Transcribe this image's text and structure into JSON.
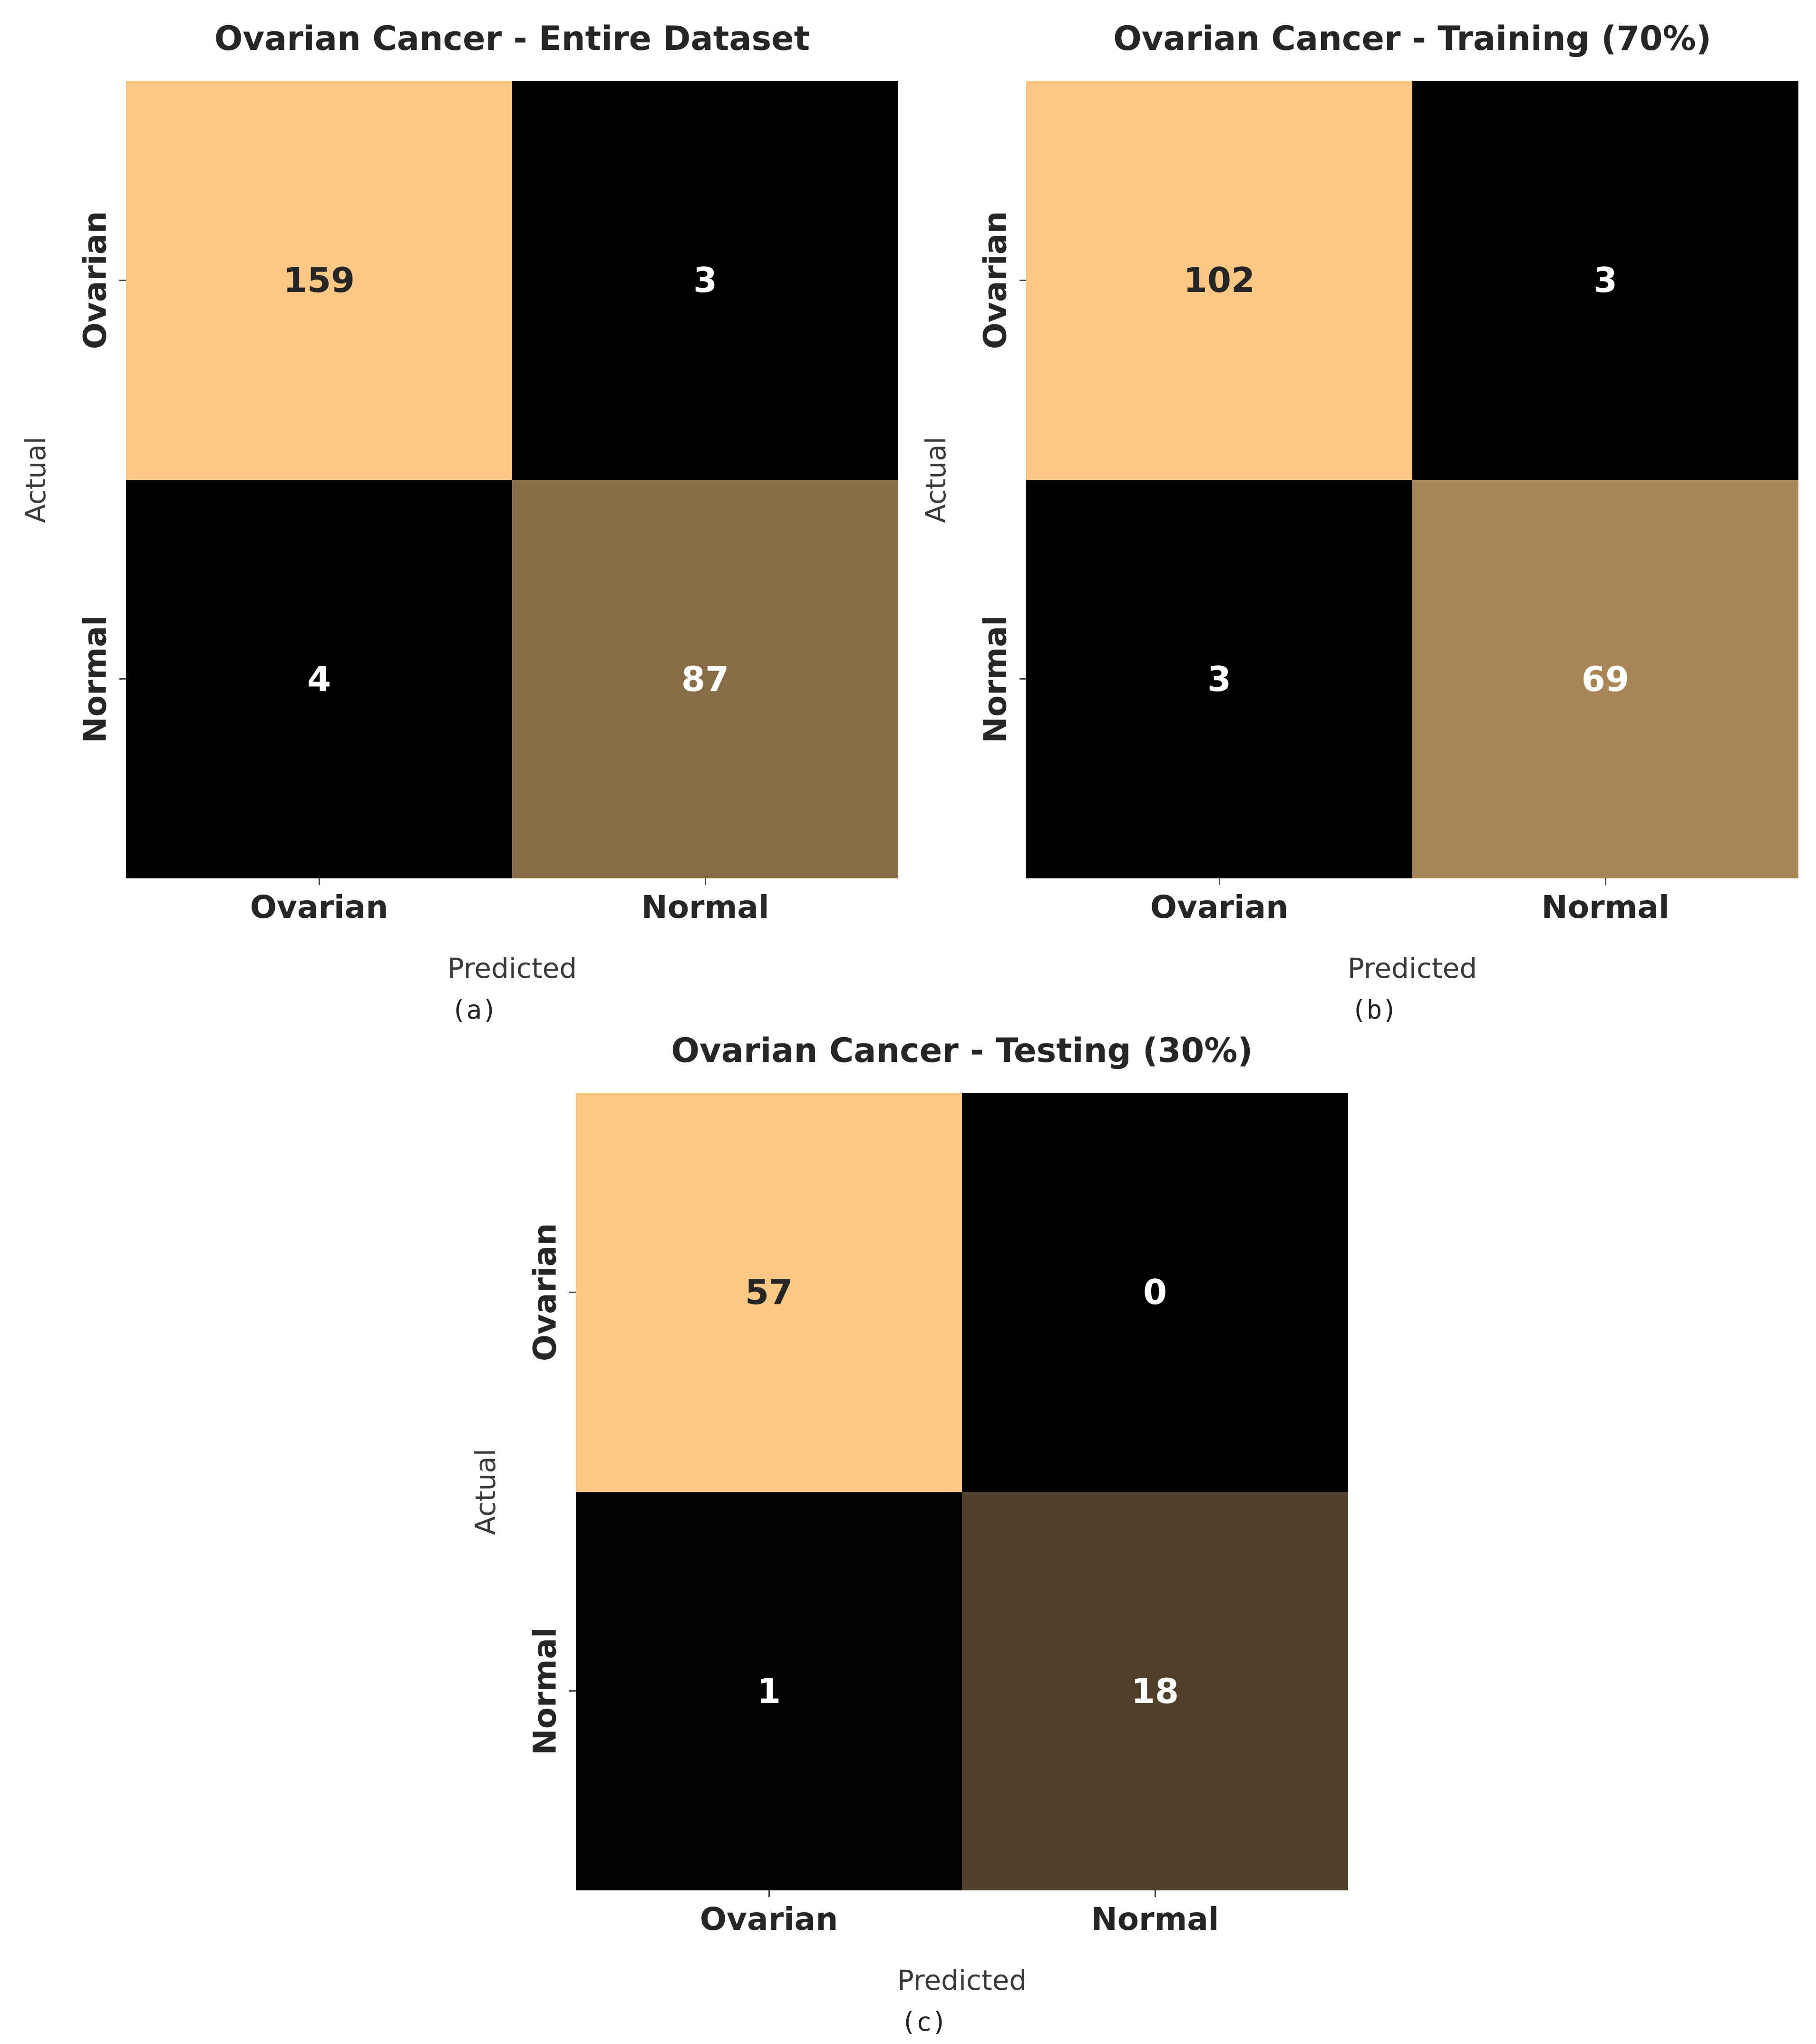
{
  "chart_data": [
    {
      "type": "heatmap",
      "title": "Ovarian Cancer - Entire Dataset",
      "caption": "(a)",
      "xlabel": "Predicted",
      "ylabel": "Actual",
      "x_categories": [
        "Ovarian",
        "Normal"
      ],
      "y_categories": [
        "Ovarian",
        "Normal"
      ],
      "values": [
        [
          159,
          3
        ],
        [
          4,
          87
        ]
      ],
      "colormap": "copper",
      "colorbar": false
    },
    {
      "type": "heatmap",
      "title": "Ovarian Cancer - Training (70%)",
      "caption": "(b)",
      "xlabel": "Predicted",
      "ylabel": "Actual",
      "x_categories": [
        "Ovarian",
        "Normal"
      ],
      "y_categories": [
        "Ovarian",
        "Normal"
      ],
      "values": [
        [
          102,
          3
        ],
        [
          3,
          69
        ]
      ],
      "colormap": "copper",
      "colorbar": false
    },
    {
      "type": "heatmap",
      "title": "Ovarian Cancer - Testing (30%)",
      "caption": "(c)",
      "xlabel": "Predicted",
      "ylabel": "Actual",
      "x_categories": [
        "Ovarian",
        "Normal"
      ],
      "y_categories": [
        "Ovarian",
        "Normal"
      ],
      "values": [
        [
          57,
          0
        ],
        [
          1,
          18
        ]
      ],
      "colormap": "copper",
      "colorbar": false
    }
  ],
  "colors": {
    "copper_max": "#fdc784",
    "copper_min": "#000000",
    "dark_text": "#262626",
    "light_text": "#ffffff"
  }
}
